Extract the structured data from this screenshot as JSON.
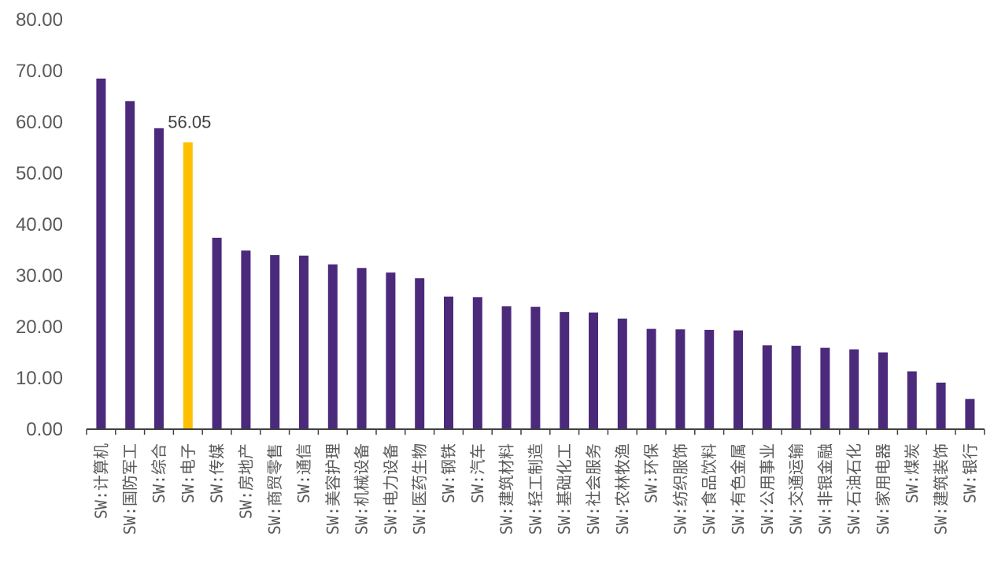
{
  "chart_data": {
    "type": "bar",
    "title": "",
    "xlabel": "",
    "ylabel": "",
    "ylim": [
      0,
      80
    ],
    "yticks": [
      "0.00",
      "10.00",
      "20.00",
      "30.00",
      "40.00",
      "50.00",
      "60.00",
      "70.00",
      "80.00"
    ],
    "grid": false,
    "legend": "none",
    "colors": {
      "default_bar": "#4B2A7B",
      "highlight_bar": "#FFC000",
      "axis": "#404040",
      "tick_text": "#595959"
    },
    "highlight_category": "SW:电子",
    "data_labels": [
      {
        "category": "SW:电子",
        "text": "56.05"
      }
    ],
    "categories": [
      "SW:计算机",
      "SW:国防军工",
      "SW:综合",
      "SW:电子",
      "SW:传媒",
      "SW:房地产",
      "SW:商贸零售",
      "SW:通信",
      "SW:美容护理",
      "SW:机械设备",
      "SW:电力设备",
      "SW:医药生物",
      "SW:钢铁",
      "SW:汽车",
      "SW:建筑材料",
      "SW:轻工制造",
      "SW:基础化工",
      "SW:社会服务",
      "SW:农林牧渔",
      "SW:环保",
      "SW:纺织服饰",
      "SW:食品饮料",
      "SW:有色金属",
      "SW:公用事业",
      "SW:交通运输",
      "SW:非银金融",
      "SW:石油石化",
      "SW:家用电器",
      "SW:煤炭",
      "SW:建筑装饰",
      "SW:银行"
    ],
    "values": [
      68.5,
      64.1,
      58.8,
      56.05,
      37.4,
      34.9,
      34.0,
      33.9,
      32.2,
      31.5,
      30.6,
      29.5,
      25.9,
      25.8,
      24.0,
      23.9,
      22.9,
      22.8,
      21.6,
      19.6,
      19.5,
      19.4,
      19.3,
      16.4,
      16.3,
      15.9,
      15.6,
      15.0,
      11.3,
      9.1,
      5.9
    ]
  }
}
